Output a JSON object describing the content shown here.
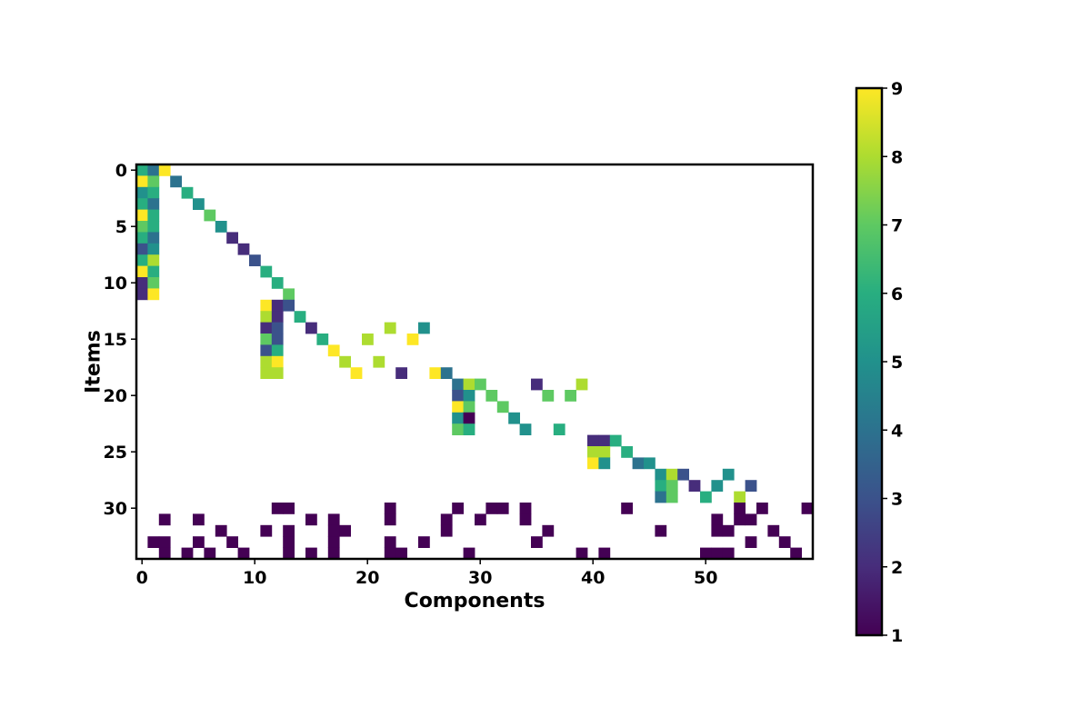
{
  "chart_data": {
    "type": "heatmap",
    "xlabel": "Components",
    "ylabel": "Items",
    "n_cols": 60,
    "n_rows": 35,
    "x_ticks": [
      0,
      10,
      20,
      30,
      40,
      50
    ],
    "y_ticks": [
      0,
      5,
      10,
      15,
      20,
      25,
      30
    ],
    "colormap": "viridis",
    "colorbar": {
      "min": 1,
      "max": 9,
      "ticks": [
        1,
        2,
        3,
        4,
        5,
        6,
        7,
        8,
        9
      ],
      "position": "right"
    },
    "grid": false,
    "cells": [
      [
        0,
        0,
        6
      ],
      [
        0,
        1,
        4
      ],
      [
        0,
        2,
        9
      ],
      [
        1,
        0,
        9
      ],
      [
        1,
        1,
        7
      ],
      [
        1,
        3,
        4
      ],
      [
        2,
        0,
        5
      ],
      [
        2,
        1,
        6
      ],
      [
        2,
        4,
        6
      ],
      [
        3,
        0,
        6
      ],
      [
        3,
        1,
        4
      ],
      [
        3,
        5,
        5
      ],
      [
        4,
        0,
        9
      ],
      [
        4,
        1,
        6
      ],
      [
        4,
        6,
        7
      ],
      [
        5,
        0,
        7
      ],
      [
        5,
        1,
        6
      ],
      [
        5,
        7,
        5
      ],
      [
        6,
        0,
        6
      ],
      [
        6,
        1,
        4
      ],
      [
        6,
        8,
        2
      ],
      [
        7,
        0,
        3
      ],
      [
        7,
        1,
        5
      ],
      [
        7,
        9,
        2
      ],
      [
        8,
        0,
        6
      ],
      [
        8,
        1,
        8
      ],
      [
        8,
        10,
        3
      ],
      [
        9,
        0,
        9
      ],
      [
        9,
        1,
        6
      ],
      [
        9,
        11,
        6
      ],
      [
        10,
        0,
        2
      ],
      [
        10,
        1,
        7
      ],
      [
        10,
        12,
        6
      ],
      [
        11,
        0,
        2
      ],
      [
        11,
        1,
        9
      ],
      [
        11,
        13,
        7
      ],
      [
        12,
        11,
        9
      ],
      [
        12,
        12,
        2
      ],
      [
        12,
        13,
        3
      ],
      [
        13,
        11,
        8
      ],
      [
        13,
        12,
        2
      ],
      [
        13,
        14,
        6
      ],
      [
        14,
        11,
        2
      ],
      [
        14,
        12,
        3
      ],
      [
        14,
        15,
        2
      ],
      [
        14,
        22,
        8
      ],
      [
        14,
        25,
        5
      ],
      [
        15,
        11,
        7
      ],
      [
        15,
        12,
        3
      ],
      [
        15,
        16,
        6
      ],
      [
        15,
        20,
        8
      ],
      [
        15,
        24,
        9
      ],
      [
        16,
        11,
        3
      ],
      [
        16,
        12,
        6
      ],
      [
        16,
        17,
        9
      ],
      [
        17,
        11,
        8
      ],
      [
        17,
        12,
        9
      ],
      [
        17,
        18,
        8
      ],
      [
        17,
        21,
        8
      ],
      [
        18,
        11,
        8
      ],
      [
        18,
        12,
        8
      ],
      [
        18,
        19,
        9
      ],
      [
        18,
        23,
        2
      ],
      [
        18,
        26,
        9
      ],
      [
        18,
        27,
        4
      ],
      [
        19,
        28,
        4
      ],
      [
        19,
        29,
        8
      ],
      [
        19,
        30,
        7
      ],
      [
        19,
        35,
        2
      ],
      [
        19,
        39,
        8
      ],
      [
        20,
        28,
        3
      ],
      [
        20,
        29,
        5
      ],
      [
        20,
        31,
        7
      ],
      [
        20,
        36,
        7
      ],
      [
        20,
        38,
        7
      ],
      [
        21,
        28,
        9
      ],
      [
        21,
        29,
        7
      ],
      [
        21,
        32,
        7
      ],
      [
        22,
        28,
        5
      ],
      [
        22,
        29,
        1
      ],
      [
        22,
        33,
        5
      ],
      [
        23,
        28,
        7
      ],
      [
        23,
        29,
        6
      ],
      [
        23,
        34,
        5
      ],
      [
        23,
        37,
        6
      ],
      [
        24,
        40,
        2
      ],
      [
        24,
        41,
        2
      ],
      [
        24,
        42,
        6
      ],
      [
        25,
        40,
        8
      ],
      [
        25,
        41,
        8
      ],
      [
        25,
        43,
        6
      ],
      [
        26,
        40,
        9
      ],
      [
        26,
        41,
        5
      ],
      [
        26,
        44,
        4
      ],
      [
        26,
        45,
        5
      ],
      [
        27,
        46,
        5
      ],
      [
        27,
        47,
        8
      ],
      [
        27,
        48,
        3
      ],
      [
        27,
        52,
        5
      ],
      [
        28,
        46,
        6
      ],
      [
        28,
        47,
        7
      ],
      [
        28,
        49,
        2
      ],
      [
        28,
        51,
        5
      ],
      [
        28,
        54,
        3
      ],
      [
        29,
        46,
        4
      ],
      [
        29,
        47,
        7
      ],
      [
        29,
        50,
        6
      ],
      [
        29,
        53,
        8
      ],
      [
        30,
        12,
        1
      ],
      [
        30,
        13,
        1
      ],
      [
        30,
        22,
        1
      ],
      [
        30,
        28,
        1
      ],
      [
        30,
        31,
        1
      ],
      [
        30,
        32,
        1
      ],
      [
        30,
        34,
        1
      ],
      [
        30,
        43,
        1
      ],
      [
        30,
        53,
        1
      ],
      [
        30,
        55,
        1
      ],
      [
        30,
        59,
        1
      ],
      [
        31,
        2,
        1
      ],
      [
        31,
        5,
        1
      ],
      [
        31,
        15,
        1
      ],
      [
        31,
        17,
        1
      ],
      [
        31,
        22,
        1
      ],
      [
        31,
        27,
        1
      ],
      [
        31,
        30,
        1
      ],
      [
        31,
        34,
        1
      ],
      [
        31,
        51,
        1
      ],
      [
        31,
        53,
        1
      ],
      [
        31,
        54,
        1
      ],
      [
        32,
        7,
        1
      ],
      [
        32,
        11,
        1
      ],
      [
        32,
        13,
        1
      ],
      [
        32,
        17,
        1
      ],
      [
        32,
        18,
        1
      ],
      [
        32,
        27,
        1
      ],
      [
        32,
        36,
        1
      ],
      [
        32,
        46,
        1
      ],
      [
        32,
        51,
        1
      ],
      [
        32,
        52,
        1
      ],
      [
        32,
        56,
        1
      ],
      [
        33,
        1,
        1
      ],
      [
        33,
        2,
        1
      ],
      [
        33,
        5,
        1
      ],
      [
        33,
        8,
        1
      ],
      [
        33,
        13,
        1
      ],
      [
        33,
        17,
        1
      ],
      [
        33,
        22,
        1
      ],
      [
        33,
        25,
        1
      ],
      [
        33,
        35,
        1
      ],
      [
        33,
        54,
        1
      ],
      [
        33,
        57,
        1
      ],
      [
        34,
        2,
        1
      ],
      [
        34,
        4,
        1
      ],
      [
        34,
        6,
        1
      ],
      [
        34,
        9,
        1
      ],
      [
        34,
        13,
        1
      ],
      [
        34,
        15,
        1
      ],
      [
        34,
        17,
        1
      ],
      [
        34,
        22,
        1
      ],
      [
        34,
        23,
        1
      ],
      [
        34,
        29,
        1
      ],
      [
        34,
        39,
        1
      ],
      [
        34,
        41,
        1
      ],
      [
        34,
        50,
        1
      ],
      [
        34,
        51,
        1
      ],
      [
        34,
        52,
        1
      ],
      [
        34,
        58,
        1
      ]
    ]
  }
}
